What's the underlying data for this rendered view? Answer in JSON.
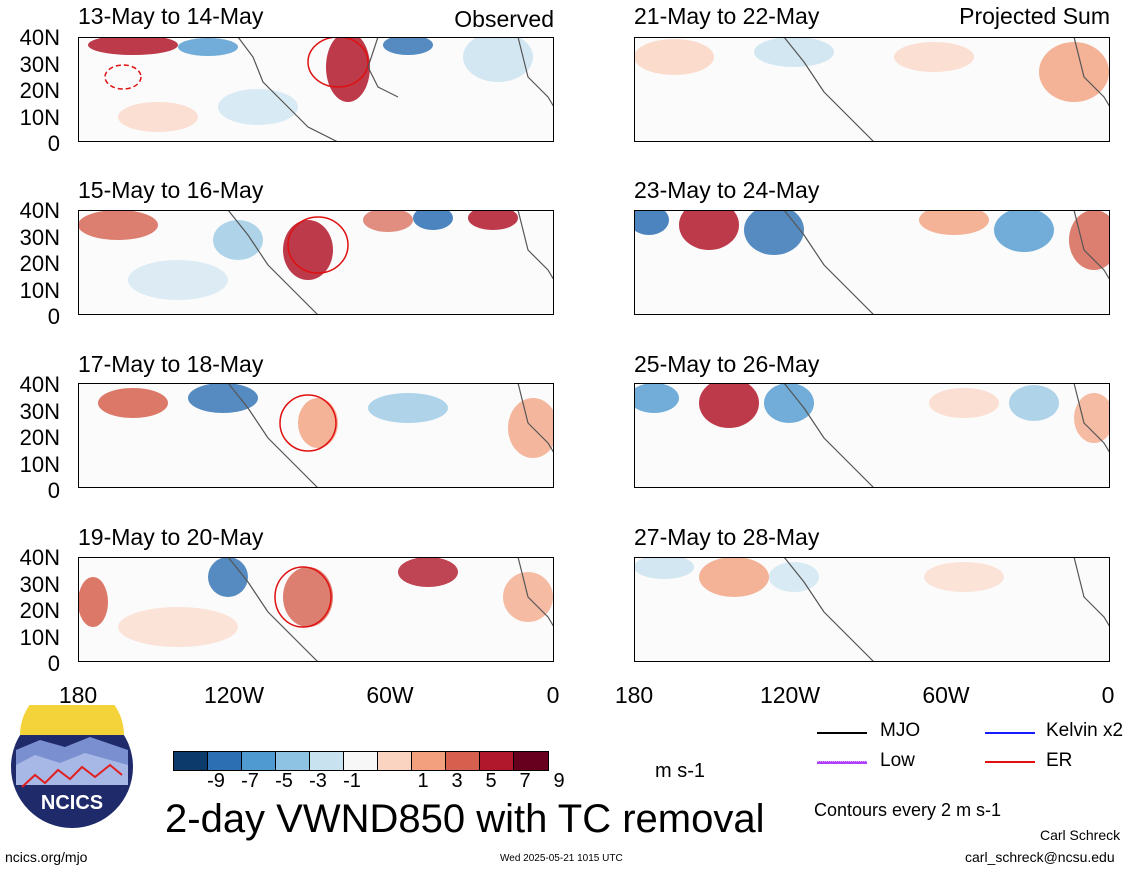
{
  "left_column": {
    "label": "Observed",
    "panels": [
      "13-May to 14-May",
      "15-May to 16-May",
      "17-May to 18-May",
      "19-May to 20-May"
    ]
  },
  "right_column": {
    "label": "Projected Sum",
    "panels": [
      "21-May to 22-May",
      "23-May to 24-May",
      "25-May to 26-May",
      "27-May to 28-May"
    ]
  },
  "lat_labels": [
    "40N",
    "30N",
    "20N",
    "10N",
    "0"
  ],
  "lon_labels": [
    "180",
    "120W",
    "60W",
    "0"
  ],
  "colorbar": {
    "ticks": [
      "-9",
      "-7",
      "-5",
      "-3",
      "-1",
      "1",
      "3",
      "5",
      "7",
      "9"
    ],
    "colors": [
      "#0b3a6b",
      "#2c6fb3",
      "#4f9ad0",
      "#8fc3e3",
      "#c9e2f0",
      "#f7f7f7",
      "#fbd3c1",
      "#f2a07e",
      "#d6604d",
      "#b2182b",
      "#67001f"
    ],
    "units": "m s-1"
  },
  "title": "2-day VWND850 with TC removal",
  "legend": {
    "items": [
      {
        "label": "MJO",
        "color": "#000000"
      },
      {
        "label": "Kelvin x2",
        "color": "#1a1aff"
      },
      {
        "label": "Low",
        "color": "#b040ff"
      },
      {
        "label": "ER",
        "color": "#e01010"
      }
    ],
    "contours": "Contours every 2 m s-1"
  },
  "logo_text": "NCICS",
  "site": "ncics.org/mjo",
  "timestamp": "Wed 2025-05-21 1015 UTC",
  "author": "Carl Schreck",
  "email": "carl_schreck@ncsu.edu"
}
